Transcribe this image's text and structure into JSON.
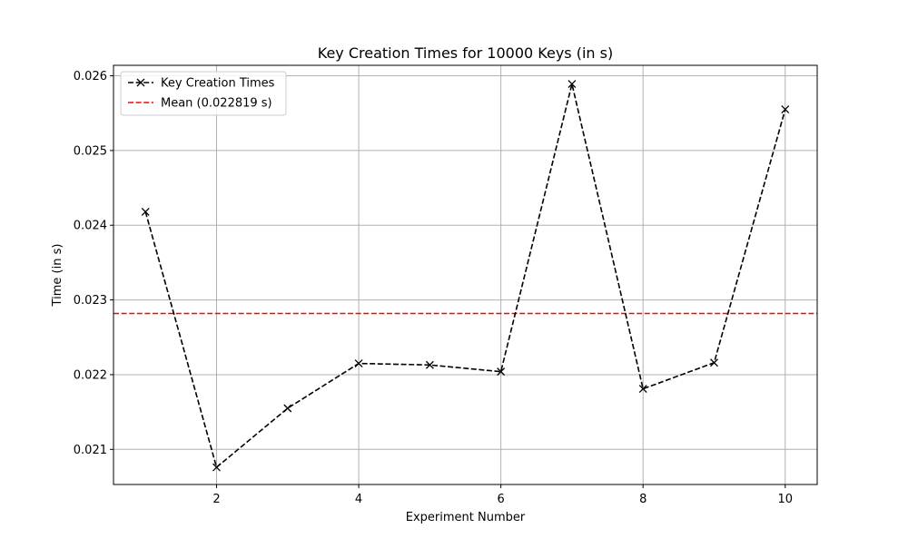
{
  "chart_data": {
    "type": "line",
    "title": "Key Creation Times for 10000 Keys (in s)",
    "xlabel": "Experiment Number",
    "ylabel": "Time (in s)",
    "xlim": [
      0.55,
      10.45
    ],
    "ylim": [
      0.02053,
      0.02614
    ],
    "x_ticks": [
      2,
      4,
      6,
      8,
      10
    ],
    "y_ticks": [
      0.021,
      0.022,
      0.023,
      0.024,
      0.025,
      0.026
    ],
    "grid": true,
    "legend_position": "upper-left",
    "series": [
      {
        "name": "Key Creation Times",
        "color": "#000000",
        "line_style": "dashed",
        "marker": "x",
        "x": [
          1,
          2,
          3,
          4,
          5,
          6,
          7,
          8,
          9,
          10
        ],
        "y": [
          0.02418,
          0.02076,
          0.02155,
          0.02215,
          0.02213,
          0.02204,
          0.02589,
          0.02181,
          0.02216,
          0.02555
        ]
      }
    ],
    "reference_lines": [
      {
        "name": "Mean (0.022819 s)",
        "orientation": "horizontal",
        "value": 0.022819,
        "color": "#ff0000",
        "line_style": "dashed"
      }
    ]
  }
}
